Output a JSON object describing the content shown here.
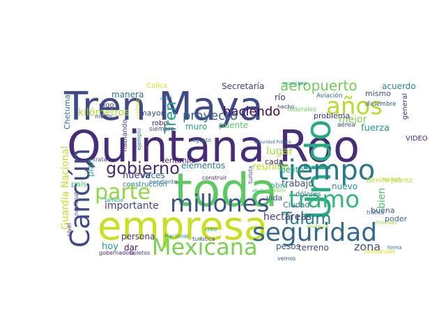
{
  "words": [
    {
      "text": "Quintana Roo",
      "color": "#472c7a"
    },
    {
      "text": "empresa",
      "color": "#c8e020"
    },
    {
      "text": "toda",
      "color": "#5ec962"
    },
    {
      "text": "Tren Maya",
      "color": "#3e4a89"
    },
    {
      "text": "Unido",
      "color": "#25ab82"
    },
    {
      "text": "tiempo",
      "color": "#2a788e"
    },
    {
      "text": "Cancún",
      "color": "#3e4989"
    },
    {
      "text": "seguridad",
      "color": "#31688e"
    },
    {
      "text": "Mexicana",
      "color": "#7ad151"
    },
    {
      "text": "millones",
      "color": "#3b528b"
    },
    {
      "text": "tramo",
      "color": "#35b779"
    },
    {
      "text": "parte",
      "color": "#90d743"
    },
    {
      "text": "años",
      "color": "#b5de2b"
    },
    {
      "text": "gobierno",
      "color": "#482878"
    },
    {
      "text": "Tulum",
      "color": "#26828e"
    },
    {
      "text": "aeropuerto",
      "color": "#6ece58"
    },
    {
      "text": "haciendo",
      "color": "#440154"
    },
    {
      "text": "proyecto",
      "color": "#33638d"
    },
    {
      "text": "Tren",
      "color": "#1f9e89"
    },
    {
      "text": "importante",
      "color": "#414487"
    },
    {
      "text": "kilómetros",
      "color": "#addc30"
    },
    {
      "text": "Guardia Nacional",
      "color": "#c2df23"
    },
    {
      "text": "reunión",
      "color": "#bddf26"
    },
    {
      "text": "trabajo",
      "color": "#3b518b"
    },
    {
      "text": "zona",
      "color": "#39568c"
    },
    {
      "text": "fuerza",
      "color": "#20928c"
    },
    {
      "text": "lugar",
      "color": "#a2da37"
    },
    {
      "text": "mejor",
      "color": "#84d44b"
    },
    {
      "text": "Secretaría",
      "color": "#424086"
    },
    {
      "text": "Chetumal",
      "color": "#2c718e"
    },
    {
      "text": "manera",
      "color": "#2c728e"
    },
    {
      "text": "hectáreas",
      "color": "#443983"
    },
    {
      "text": "elementos",
      "color": "#297a8e"
    },
    {
      "text": "pesos",
      "color": "#375a8c"
    },
    {
      "text": "terreno",
      "color": "#3f4788"
    },
    {
      "text": "Ciudad",
      "color": "#2d708e"
    },
    {
      "text": "persona",
      "color": "#46327e"
    },
    {
      "text": "nuevo",
      "color": "#1f948c"
    },
    {
      "text": "poder",
      "color": "#30698e"
    },
    {
      "text": "mismo",
      "color": "#3a548c"
    },
    {
      "text": "hoy",
      "color": "#1fa088"
    },
    {
      "text": "dar",
      "color": "#471365"
    },
    {
      "text": "plan",
      "color": "#2ab07f"
    },
    {
      "text": "bien",
      "color": "#4ac16d"
    },
    {
      "text": "delito",
      "color": "#26ad81"
    },
    {
      "text": "obra",
      "color": "#31b57b"
    },
    {
      "text": "mayor",
      "color": "#3f4889"
    },
    {
      "text": "cada",
      "color": "#481f70"
    },
    {
      "text": "muro",
      "color": "#20a386"
    },
    {
      "text": "puente",
      "color": "#5cc863"
    },
    {
      "text": "país",
      "color": "#52c569"
    },
    {
      "text": "nueva",
      "color": "#443a83"
    },
    {
      "text": "veces",
      "color": "#2e6e8e"
    },
    {
      "text": "tentanilo",
      "color": "#482173"
    },
    {
      "text": "vida",
      "color": "#3d4e8a"
    },
    {
      "text": "buena",
      "color": "#3b528b"
    },
    {
      "text": "acuerdo",
      "color": "#25858e"
    },
    {
      "text": "diciembre",
      "color": "#38598c"
    },
    {
      "text": "federales",
      "color": "#70cf57"
    },
    {
      "text": "Aviación",
      "color": "#2d718e"
    },
    {
      "text": "río",
      "color": "#472e7c"
    },
    {
      "text": "hecho",
      "color": "#472f7d"
    },
    {
      "text": "municipio",
      "color": "#1f9a8a"
    },
    {
      "text": "general",
      "color": "#46317e"
    },
    {
      "text": "problema",
      "color": "#472d7b"
    },
    {
      "text": "aérea",
      "color": "#3c4f8a"
    },
    {
      "text": "VIDEO",
      "color": "#482576"
    },
    {
      "text": "Calica",
      "color": "#d5e21a"
    },
    {
      "text": "digo",
      "color": "#443b84"
    },
    {
      "text": "café",
      "color": "#2d708e"
    },
    {
      "text": "medio",
      "color": "#424186"
    },
    {
      "text": "robo",
      "color": "#471164"
    },
    {
      "text": "siempre",
      "color": "#3d4d8a"
    },
    {
      "text": "hablando",
      "color": "#414387"
    },
    {
      "text": "ejemplo",
      "color": "#2a768e"
    },
    {
      "text": "cuando",
      "color": "#d8e219"
    },
    {
      "text": "agosto",
      "color": "#2e6d8e"
    },
    {
      "text": "Seguridad Pública",
      "color": "#2f6b8e"
    },
    {
      "text": "construir",
      "color": "#482475"
    },
    {
      "text": "turista",
      "color": "#3b518b"
    },
    {
      "text": "trata",
      "color": "#3e4c8a"
    },
    {
      "text": "construcción",
      "color": "#26828e"
    },
    {
      "text": "pendiente",
      "color": "#2d708e"
    },
    {
      "text": "familia",
      "color": "#22a884"
    },
    {
      "text": "efectivo",
      "color": "#32b67a"
    },
    {
      "text": "pueblo",
      "color": "#7fd34e"
    },
    {
      "text": "dólares",
      "color": "#2a768e"
    },
    {
      "text": "Benito Juárez",
      "color": "#bade28"
    },
    {
      "text": "apoyo",
      "color": "#addc30"
    },
    {
      "text": "nivel",
      "color": "#482979"
    },
    {
      "text": "nacional",
      "color": "#3f4889"
    },
    {
      "text": "tráfico",
      "color": "#2e6f8e"
    },
    {
      "text": "muchas",
      "color": "#96d83f"
    },
    {
      "text": "creo",
      "color": "#20a486"
    },
    {
      "text": "materia",
      "color": "#a8db34"
    },
    {
      "text": "Nacional",
      "color": "#228c8d"
    },
    {
      "text": "turística",
      "color": "#424186"
    },
    {
      "text": "gobernadora",
      "color": "#482475"
    },
    {
      "text": "boletos",
      "color": "#453882"
    },
    {
      "text": "vemos",
      "color": "#3a538b"
    },
    {
      "text": "forma",
      "color": "#2a788e"
    },
    {
      "text": "Solidaridad",
      "color": "#d2e21b"
    }
  ]
}
